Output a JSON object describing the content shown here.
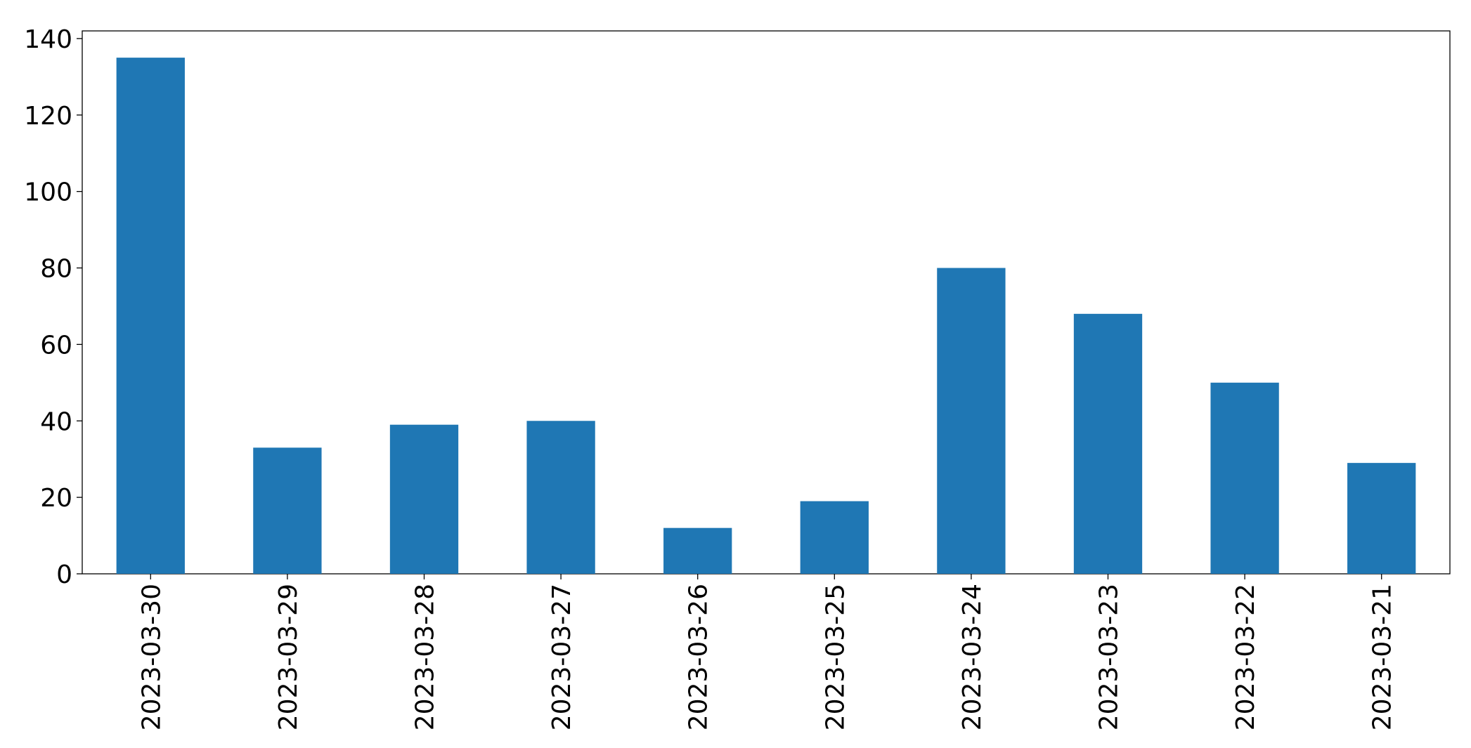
{
  "chart_data": {
    "type": "bar",
    "categories": [
      "2023-03-30",
      "2023-03-29",
      "2023-03-28",
      "2023-03-27",
      "2023-03-26",
      "2023-03-25",
      "2023-03-24",
      "2023-03-23",
      "2023-03-22",
      "2023-03-21"
    ],
    "values": [
      135,
      33,
      39,
      40,
      12,
      19,
      80,
      68,
      50,
      29
    ],
    "color": "#1f77b4",
    "ylim": [
      0,
      142
    ],
    "yticks": [
      0,
      20,
      40,
      60,
      80,
      100,
      120,
      140
    ],
    "grid": false
  }
}
